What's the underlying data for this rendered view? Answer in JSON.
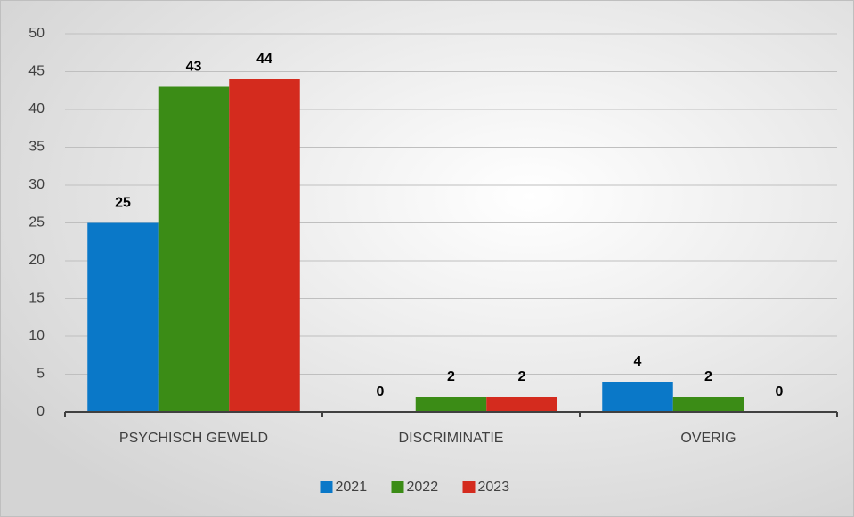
{
  "chart_data": {
    "type": "bar",
    "categories": [
      "PSYCHISCH GEWELD",
      "DISCRIMINATIE",
      "OVERIG"
    ],
    "series": [
      {
        "name": "2021",
        "color": "#0a78c8",
        "values": [
          25,
          0,
          4
        ]
      },
      {
        "name": "2022",
        "color": "#3b8c16",
        "values": [
          43,
          2,
          2
        ]
      },
      {
        "name": "2023",
        "color": "#d42b1e",
        "values": [
          44,
          2,
          0
        ]
      }
    ],
    "ylim": [
      0,
      50
    ],
    "yticks": [
      0,
      5,
      10,
      15,
      20,
      25,
      30,
      35,
      40,
      45,
      50
    ],
    "grid": true,
    "legend": "bottom"
  }
}
